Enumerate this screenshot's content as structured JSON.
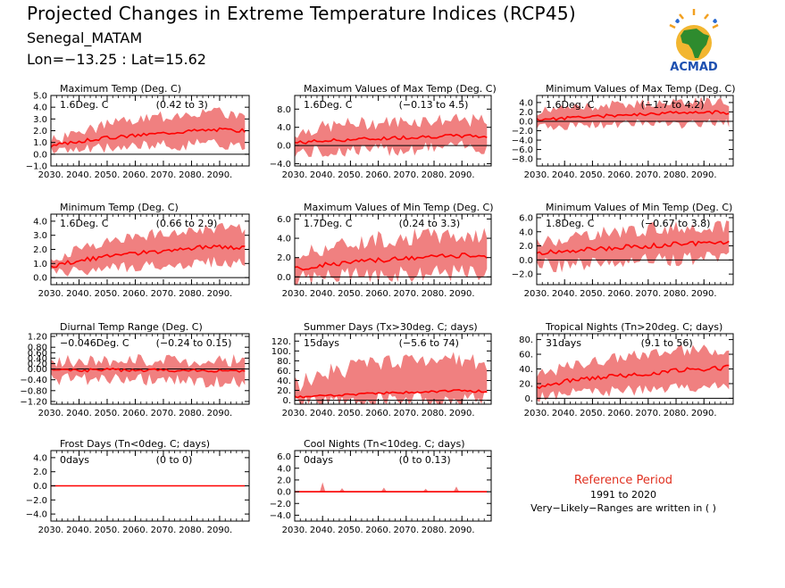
{
  "header": {
    "title": "Projected Changes in Extreme Temperature Indices (RCP45)",
    "location": "Senegal_MATAM",
    "coords": "Lon=−13.25 : Lat=15.62"
  },
  "logo": {
    "text": "ACMAD",
    "icon": "africa-map-icon"
  },
  "reference": {
    "title": "Reference Period",
    "years": "1991 to 2020",
    "note": "Very−Likely−Ranges are written in ( )"
  },
  "colors": {
    "band": "#f08080",
    "line": "#ff0000",
    "zero": "#000000",
    "ref_title": "#e03020"
  },
  "chart_data": [
    {
      "type": "area",
      "title": "Maximum Temp (Deg. C)",
      "mean_label": "1.6Deg. C",
      "range_label": "(0.42 to 3)",
      "x_start": 2030,
      "x_end": 2099,
      "x_ticks": [
        "2030.",
        "2040.",
        "2050.",
        "2060.",
        "2070.",
        "2080.",
        "2090."
      ],
      "ylim": [
        -1,
        5
      ],
      "y_ticks": [
        "−1.0",
        "0.0",
        "1.0",
        "2.0",
        "3.0",
        "4.0",
        "5.0"
      ],
      "y_tick_values": [
        -1,
        0,
        1,
        2,
        3,
        4,
        5
      ],
      "anchors": [
        [
          2030,
          0.7,
          0.3,
          1.1
        ],
        [
          2040,
          1.1,
          0.4,
          1.9
        ],
        [
          2050,
          1.4,
          0.5,
          2.5
        ],
        [
          2060,
          1.6,
          0.7,
          2.9
        ],
        [
          2070,
          1.8,
          0.8,
          3.2
        ],
        [
          2080,
          2.0,
          0.8,
          3.6
        ],
        [
          2090,
          2.1,
          0.9,
          3.5
        ],
        [
          2099,
          2.0,
          0.7,
          3.4
        ]
      ],
      "noise_mean": 0.15,
      "noise_band": 0.5,
      "seed": 3
    },
    {
      "type": "area",
      "title": "Maximum Values of Max Temp (Deg. C)",
      "mean_label": "1.6Deg. C",
      "range_label": "(−0.13 to 4.5)",
      "x_start": 2030,
      "x_end": 2099,
      "x_ticks": [
        "2030.",
        "2040.",
        "2050.",
        "2060.",
        "2070.",
        "2080.",
        "2090."
      ],
      "ylim": [
        -4.5,
        11
      ],
      "y_ticks": [
        "−4.0",
        "0.0",
        "4.0",
        "8.0"
      ],
      "y_tick_values": [
        -4,
        0,
        4,
        8
      ],
      "anchors": [
        [
          2030,
          0.6,
          -1.5,
          2.8
        ],
        [
          2040,
          1.0,
          -1.5,
          4.0
        ],
        [
          2050,
          1.3,
          -1.0,
          4.8
        ],
        [
          2060,
          1.5,
          -1.0,
          5.0
        ],
        [
          2070,
          1.8,
          -0.8,
          5.4
        ],
        [
          2080,
          2.0,
          -0.5,
          5.6
        ],
        [
          2090,
          2.1,
          -0.3,
          5.5
        ],
        [
          2099,
          2.0,
          -0.5,
          5.4
        ]
      ],
      "noise_mean": 0.4,
      "noise_band": 1.5,
      "seed": 7
    },
    {
      "type": "area",
      "title": "Minimum Values of Max Temp (Deg. C)",
      "mean_label": "1.6Deg. C",
      "range_label": "(−1.7 to 4.2)",
      "x_start": 2030,
      "x_end": 2099,
      "x_ticks": [
        "2030.",
        "2040.",
        "2050.",
        "2060.",
        "2070.",
        "2080.",
        "2090."
      ],
      "ylim": [
        -9.5,
        5.5
      ],
      "y_ticks": [
        "−8.0",
        "−6.0",
        "−4.0",
        "−2.0",
        "0.0",
        "2.0",
        "4.0"
      ],
      "y_tick_values": [
        -8,
        -6,
        -4,
        -2,
        0,
        2,
        4
      ],
      "anchors": [
        [
          2030,
          0.3,
          -1.2,
          2.0
        ],
        [
          2040,
          0.7,
          -1.0,
          2.8
        ],
        [
          2050,
          1.0,
          -0.8,
          3.2
        ],
        [
          2060,
          1.3,
          -0.6,
          3.6
        ],
        [
          2070,
          1.6,
          -0.5,
          3.8
        ],
        [
          2080,
          1.9,
          -0.8,
          4.2
        ],
        [
          2090,
          2.0,
          -0.4,
          4.3
        ],
        [
          2099,
          1.8,
          -0.4,
          4.0
        ]
      ],
      "noise_mean": 0.35,
      "noise_band": 1.0,
      "seed": 11
    },
    {
      "type": "area",
      "title": "Minimum Temp (Deg. C)",
      "mean_label": "1.6Deg. C",
      "range_label": "(0.66 to 2.9)",
      "x_start": 2030,
      "x_end": 2099,
      "x_ticks": [
        "2030.",
        "2040.",
        "2050.",
        "2060.",
        "2070.",
        "2080.",
        "2090."
      ],
      "ylim": [
        -0.5,
        4.5
      ],
      "y_ticks": [
        "0.0",
        "1.0",
        "2.0",
        "3.0",
        "4.0"
      ],
      "y_tick_values": [
        0,
        1,
        2,
        3,
        4
      ],
      "anchors": [
        [
          2030,
          0.8,
          0.3,
          1.3
        ],
        [
          2040,
          1.2,
          0.5,
          2.0
        ],
        [
          2050,
          1.5,
          0.7,
          2.6
        ],
        [
          2060,
          1.7,
          0.8,
          2.9
        ],
        [
          2070,
          1.9,
          0.9,
          3.2
        ],
        [
          2080,
          2.1,
          1.0,
          3.4
        ],
        [
          2090,
          2.2,
          1.1,
          3.5
        ],
        [
          2099,
          2.1,
          1.0,
          3.4
        ]
      ],
      "noise_mean": 0.15,
      "noise_band": 0.4,
      "seed": 13
    },
    {
      "type": "area",
      "title": "Maximum Values of Min Temp (Deg. C)",
      "mean_label": "1.7Deg. C",
      "range_label": "(0.24 to 3.3)",
      "x_start": 2030,
      "x_end": 2099,
      "x_ticks": [
        "2030.",
        "2040.",
        "2050.",
        "2060.",
        "2070.",
        "2080.",
        "2090."
      ],
      "ylim": [
        -0.8,
        6.5
      ],
      "y_ticks": [
        "0.0",
        "2.0",
        "4.0",
        "6.0"
      ],
      "y_tick_values": [
        0,
        2,
        4,
        6
      ],
      "anchors": [
        [
          2030,
          0.8,
          -0.2,
          2.2
        ],
        [
          2040,
          1.2,
          0.0,
          3.0
        ],
        [
          2050,
          1.5,
          0.1,
          3.5
        ],
        [
          2060,
          1.7,
          0.2,
          3.9
        ],
        [
          2070,
          1.9,
          0.3,
          4.1
        ],
        [
          2080,
          2.1,
          0.4,
          4.3
        ],
        [
          2090,
          2.2,
          0.5,
          4.3
        ],
        [
          2099,
          2.2,
          0.5,
          4.2
        ]
      ],
      "noise_mean": 0.25,
      "noise_band": 0.9,
      "seed": 17
    },
    {
      "type": "area",
      "title": "Minimum Values of Min Temp (Deg. C)",
      "mean_label": "1.8Deg. C",
      "range_label": "(−0.67 to 3.8)",
      "x_start": 2030,
      "x_end": 2099,
      "x_ticks": [
        "2030.",
        "2040.",
        "2050.",
        "2060.",
        "2070.",
        "2080.",
        "2090."
      ],
      "ylim": [
        -3.5,
        6.5
      ],
      "y_ticks": [
        "−2.0",
        "0.0",
        "2.0",
        "4.0",
        "6.0"
      ],
      "y_tick_values": [
        -2,
        0,
        2,
        4,
        6
      ],
      "anchors": [
        [
          2030,
          0.9,
          -0.6,
          2.4
        ],
        [
          2040,
          1.2,
          -0.8,
          3.0
        ],
        [
          2050,
          1.5,
          -0.5,
          3.6
        ],
        [
          2060,
          1.8,
          -0.3,
          4.0
        ],
        [
          2070,
          2.0,
          -0.1,
          4.3
        ],
        [
          2080,
          2.2,
          0.1,
          4.5
        ],
        [
          2090,
          2.5,
          0.3,
          4.8
        ],
        [
          2099,
          2.6,
          0.3,
          4.8
        ]
      ],
      "noise_mean": 0.35,
      "noise_band": 1.0,
      "seed": 19
    },
    {
      "type": "area",
      "title": "Diurnal Temp Range (Deg. C)",
      "mean_label": "−0.046Deg. C",
      "range_label": "(−0.24 to 0.15)",
      "x_start": 2030,
      "x_end": 2099,
      "x_ticks": [
        "2030.",
        "2040.",
        "2050.",
        "2060.",
        "2070.",
        "2080.",
        "2090."
      ],
      "ylim": [
        -1.3,
        1.3
      ],
      "y_ticks": [
        "−1.20",
        "−0.80",
        "−0.40",
        "0.00",
        "0.20",
        "0.40",
        "0.60",
        "0.80",
        "1.20"
      ],
      "y_tick_values": [
        -1.2,
        -0.8,
        -0.4,
        0,
        0.2,
        0.4,
        0.6,
        0.8,
        1.2
      ],
      "anchors": [
        [
          2030,
          -0.05,
          -0.35,
          0.25
        ],
        [
          2040,
          -0.05,
          -0.4,
          0.3
        ],
        [
          2050,
          -0.03,
          -0.4,
          0.3
        ],
        [
          2060,
          -0.05,
          -0.4,
          0.3
        ],
        [
          2070,
          -0.04,
          -0.4,
          0.3
        ],
        [
          2080,
          -0.05,
          -0.45,
          0.3
        ],
        [
          2090,
          -0.05,
          -0.45,
          0.35
        ],
        [
          2099,
          -0.1,
          -0.5,
          0.3
        ]
      ],
      "noise_mean": 0.06,
      "noise_band": 0.25,
      "seed": 23
    },
    {
      "type": "area",
      "title": "Summer Days (Tx>30deg. C; days)",
      "mean_label": "15days",
      "range_label": "(−5.6 to 74)",
      "x_start": 2030,
      "x_end": 2099,
      "x_ticks": [
        "2030.",
        "2040.",
        "2050.",
        "2060.",
        "2070.",
        "2080.",
        "2090."
      ],
      "ylim": [
        -8,
        135
      ],
      "y_ticks": [
        "0.",
        "20.",
        "40.",
        "60.",
        "80.",
        "100.",
        "120."
      ],
      "y_tick_values": [
        0,
        20,
        40,
        60,
        80,
        100,
        120
      ],
      "anchors": [
        [
          2030,
          6,
          -3,
          30
        ],
        [
          2040,
          10,
          -3,
          55
        ],
        [
          2050,
          12,
          -2,
          65
        ],
        [
          2060,
          14,
          -2,
          72
        ],
        [
          2070,
          16,
          -2,
          78
        ],
        [
          2080,
          18,
          -1,
          80
        ],
        [
          2090,
          19,
          -1,
          80
        ],
        [
          2099,
          18,
          -1,
          78
        ]
      ],
      "noise_mean": 2.5,
      "noise_band": 18,
      "seed": 29
    },
    {
      "type": "area",
      "title": "Tropical Nights (Tn>20deg. C; days)",
      "mean_label": "31days",
      "range_label": "(9.1 to 56)",
      "x_start": 2030,
      "x_end": 2099,
      "x_ticks": [
        "2030.",
        "2040.",
        "2050.",
        "2060.",
        "2070.",
        "2080.",
        "2090."
      ],
      "ylim": [
        -8,
        88
      ],
      "y_ticks": [
        "0.",
        "20.",
        "40.",
        "60.",
        "80."
      ],
      "y_tick_values": [
        0,
        20,
        40,
        60,
        80
      ],
      "anchors": [
        [
          2030,
          15,
          2,
          30
        ],
        [
          2040,
          23,
          6,
          42
        ],
        [
          2050,
          28,
          8,
          50
        ],
        [
          2060,
          31,
          10,
          56
        ],
        [
          2070,
          34,
          12,
          60
        ],
        [
          2080,
          38,
          14,
          64
        ],
        [
          2090,
          40,
          16,
          66
        ],
        [
          2099,
          42,
          18,
          66
        ]
      ],
      "noise_mean": 3,
      "noise_band": 8,
      "seed": 31
    },
    {
      "type": "area",
      "title": "Frost Days (Tn<0deg. C; days)",
      "mean_label": "0days",
      "range_label": "(0 to 0)",
      "x_start": 2030,
      "x_end": 2099,
      "x_ticks": [
        "2030.",
        "2040.",
        "2050.",
        "2060.",
        "2070.",
        "2080.",
        "2090."
      ],
      "ylim": [
        -5,
        5
      ],
      "y_ticks": [
        "−4.0",
        "−2.0",
        "0.0",
        "2.0",
        "4.0"
      ],
      "y_tick_values": [
        -4,
        -2,
        0,
        2,
        4
      ],
      "anchors": [
        [
          2030,
          0,
          0,
          0
        ],
        [
          2099,
          0,
          0,
          0
        ]
      ],
      "noise_mean": 0,
      "noise_band": 0,
      "seed": 37
    },
    {
      "type": "area",
      "title": "Cool Nights (Tn<10deg. C; days)",
      "mean_label": "0days",
      "range_label": "(0 to 0.13)",
      "x_start": 2030,
      "x_end": 2099,
      "x_ticks": [
        "2030.",
        "2040.",
        "2050.",
        "2060.",
        "2070.",
        "2080.",
        "2090."
      ],
      "ylim": [
        -5,
        7
      ],
      "y_ticks": [
        "−4.0",
        "−2.0",
        "0.0",
        "2.0",
        "4.0",
        "6.0"
      ],
      "y_tick_values": [
        -4,
        -2,
        0,
        2,
        4,
        6
      ],
      "anchors": [
        [
          2030,
          0,
          0,
          0
        ],
        [
          2099,
          0,
          0,
          0
        ]
      ],
      "noise_mean": 0,
      "noise_band": 0,
      "seed": 41,
      "spikes": [
        [
          2040,
          1.6
        ],
        [
          2047,
          0.6
        ],
        [
          2062,
          0.7
        ],
        [
          2077,
          0.5
        ],
        [
          2088,
          0.9
        ]
      ]
    }
  ]
}
